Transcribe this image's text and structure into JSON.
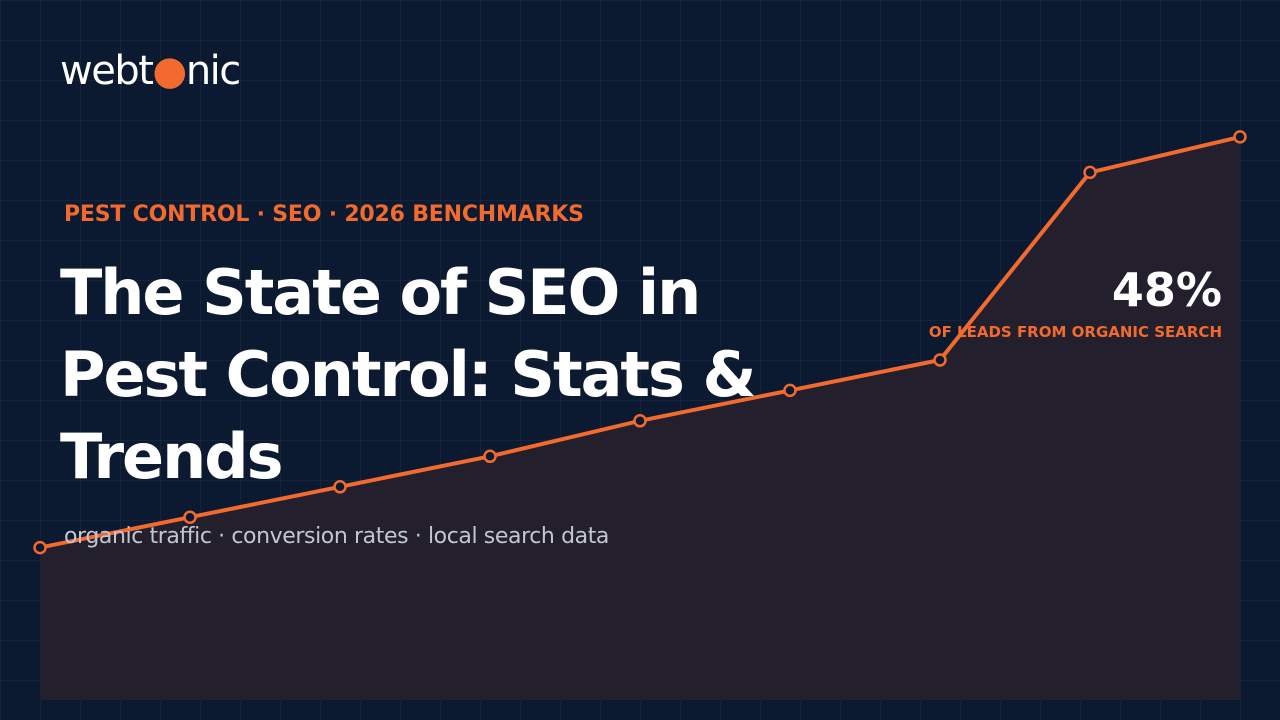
{
  "brand": {
    "logo_prefix": "webt",
    "logo_dot": "●",
    "logo_suffix": "nic",
    "accent_color": "#f26a2e"
  },
  "kicker": "PEST CONTROL · SEO · 2026 BENCHMARKS",
  "title": "The State of SEO in Pest Control: Stats & Trends",
  "subtitle": "organic traffic · conversion rates · local search data",
  "stat": {
    "value": "48%",
    "label": "OF LEADS FROM ORGANIC SEARCH"
  },
  "chart_data": {
    "type": "line",
    "values": [
      10,
      16,
      22,
      28,
      35,
      41,
      47,
      84,
      91
    ],
    "ylim": [
      -24,
      118
    ],
    "line_color": "#f26a2e",
    "fill_color": "#231f2c",
    "marker_fill": "#0c1a31"
  }
}
